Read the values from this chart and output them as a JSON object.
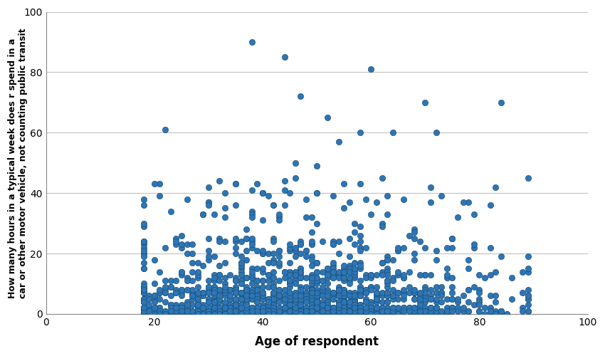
{
  "xlabel": "Age of respondent",
  "ylabel_lines": [
    "How many hours in a typical week does r spend in a",
    "car or other motor vehicle, not counting public transit"
  ],
  "xlim": [
    0,
    100
  ],
  "ylim": [
    0,
    100
  ],
  "xticks": [
    0,
    20,
    40,
    60,
    80,
    100
  ],
  "yticks": [
    0,
    20,
    40,
    60,
    80,
    100
  ],
  "marker_facecolor": "#2E75B6",
  "marker_edgecolor": "#1A5276",
  "marker_size": 35,
  "marker_alpha": 1.0,
  "background_color": "#FFFFFF",
  "grid_color": "#C0C0C0",
  "xlabel_fontsize": 12,
  "ylabel_fontsize": 9,
  "tick_fontsize": 10,
  "spine_color": "#888888"
}
